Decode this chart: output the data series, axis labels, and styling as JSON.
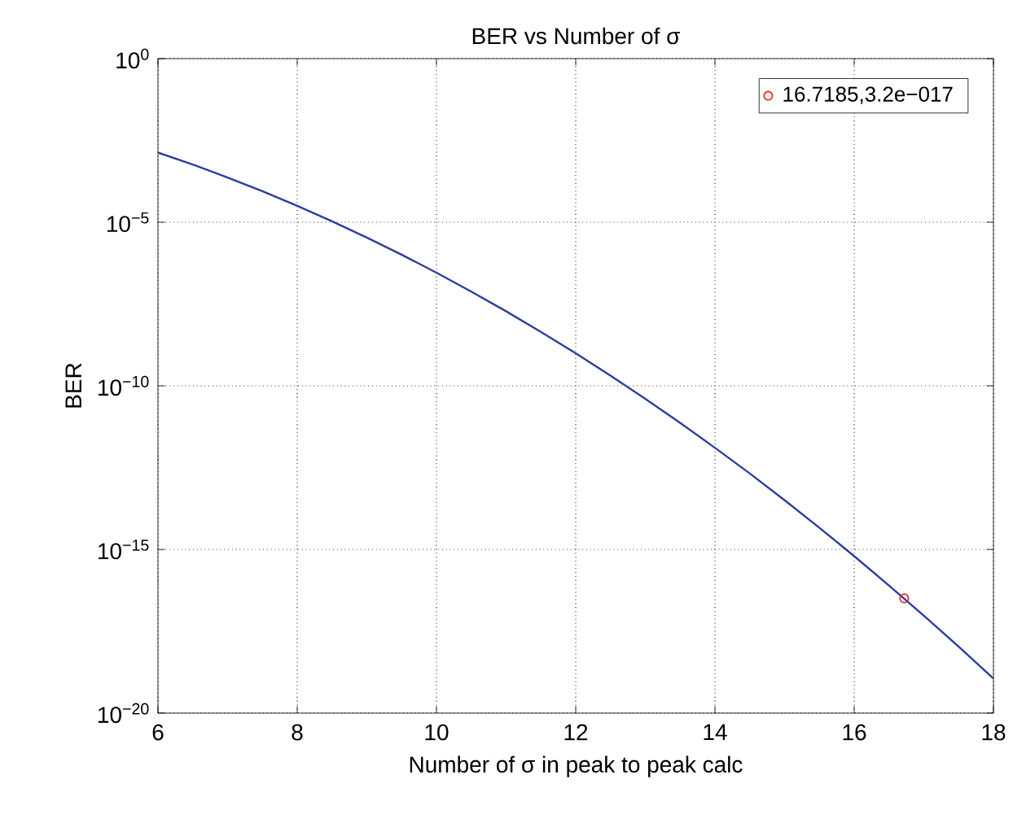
{
  "chart_data": {
    "type": "line",
    "title": "BER vs Number of σ",
    "xlabel": "Number of σ in peak to peak calc",
    "ylabel": "BER",
    "log": "y",
    "grid": true,
    "legend": "top right",
    "line_style": "solid",
    "xlim": [
      6,
      18
    ],
    "xticks": [
      6,
      8,
      10,
      12,
      14,
      16,
      18
    ],
    "ylim": [
      1e-20,
      1
    ],
    "yticks": [
      {
        "value": 1e-20,
        "label": "10$^{−20}$"
      },
      {
        "value": 1e-15,
        "label": "10$^{−15}$"
      },
      {
        "value": 1e-10,
        "label": "10$^{−10}$"
      },
      {
        "value": 1e-05,
        "label": "10$^{−5}$"
      },
      {
        "value": 1,
        "label": "10$^{0}$"
      }
    ],
    "series": [
      {
        "color": "#2a3d9f",
        "x": [
          6,
          6.5,
          7,
          7.5,
          8,
          8.5,
          9,
          9.5,
          10,
          10.5,
          11,
          11.5,
          12,
          12.5,
          13,
          13.5,
          14,
          14.5,
          15,
          15.5,
          16,
          16.5,
          17,
          17.5,
          18
        ],
        "values": [
          0.00135,
          0.000577,
          0.000233,
          8.84e-05,
          3.17e-05,
          1.07e-05,
          3.4e-06,
          1.02e-06,
          2.87e-07,
          7.6e-08,
          1.9e-08,
          4.46e-09,
          9.87e-10,
          2.05e-10,
          4e-11,
          7.4e-12,
          1.28e-12,
          2.1e-13,
          3.19e-14,
          4.6e-15,
          6.22e-16,
          7.9e-17,
          9.5e-18,
          1.07e-18,
          1.13e-19
        ]
      },
      {
        "type": "scatter",
        "name": "16.7185,3.2e−017",
        "color": "#e03020",
        "marker": "circle",
        "x": [
          16.7185
        ],
        "values": [
          3.2e-17
        ]
      }
    ]
  }
}
